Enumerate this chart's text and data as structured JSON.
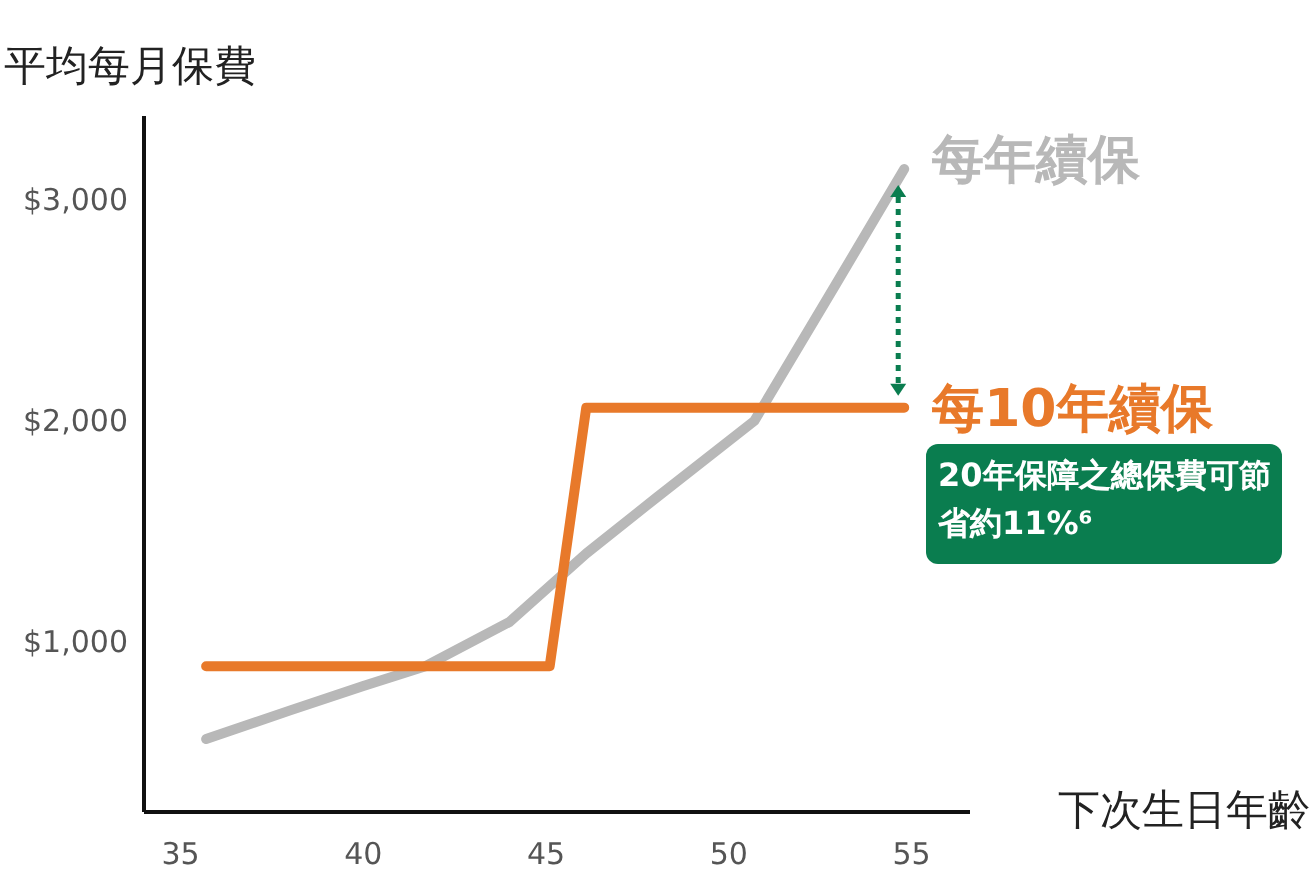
{
  "chart_data": {
    "type": "line",
    "ylabel": "平均每月保費",
    "xlabel": "下次生日年齡",
    "xlim": [
      34,
      56.6
    ],
    "ylim": [
      230,
      3380
    ],
    "xticks": [
      35,
      40,
      45,
      50,
      55
    ],
    "yticks": [
      {
        "value": 1000,
        "label": "$1,000"
      },
      {
        "value": 2000,
        "label": "$2,000"
      },
      {
        "value": 3000,
        "label": "$3,000"
      }
    ],
    "line_style": "solid",
    "series": [
      {
        "name": "每年續保",
        "color": "#b8b8b8",
        "x": [
          35.7,
          38,
          40,
          41.7,
          44,
          46.1,
          48,
          50.7,
          52.9,
          54.8
        ],
        "values": [
          560,
          690,
          800,
          890,
          1090,
          1400,
          1650,
          2000,
          2610,
          3140
        ]
      },
      {
        "name": "每10年續保",
        "color": "#e8792a",
        "x": [
          35.7,
          45.1,
          46.1,
          54.8
        ],
        "values": [
          890,
          890,
          2060,
          2060
        ]
      }
    ],
    "annotations": [
      "20年保障之總保費可節省約11%⁶"
    ]
  }
}
